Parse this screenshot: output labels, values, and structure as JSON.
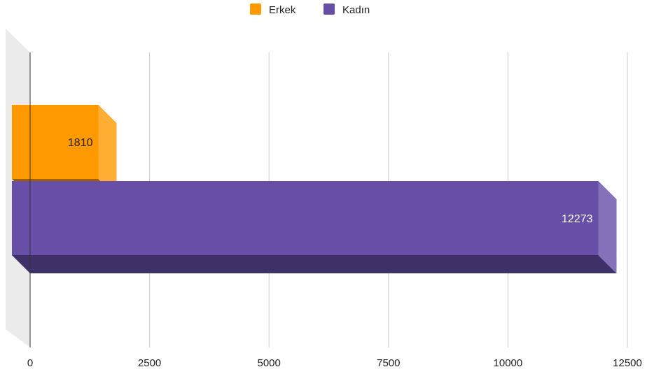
{
  "chart_data": {
    "type": "bar",
    "orientation": "horizontal",
    "style": "3d",
    "title": "",
    "xlabel": "",
    "ylabel": "",
    "xlim": [
      0,
      12500
    ],
    "x_ticks": [
      0,
      2500,
      5000,
      7500,
      10000,
      12500
    ],
    "x_tick_labels": [
      "0",
      "2500",
      "5000",
      "7500",
      "10000",
      "12500"
    ],
    "grid": true,
    "legend_position": "top",
    "series": [
      {
        "name": "Erkek",
        "value": 1810,
        "label": "1810",
        "color": "#ff9900",
        "label_color": "#222222"
      },
      {
        "name": "Kadın",
        "value": 12273,
        "label": "12273",
        "color": "#674ea7",
        "label_color": "#ffffff"
      }
    ]
  }
}
